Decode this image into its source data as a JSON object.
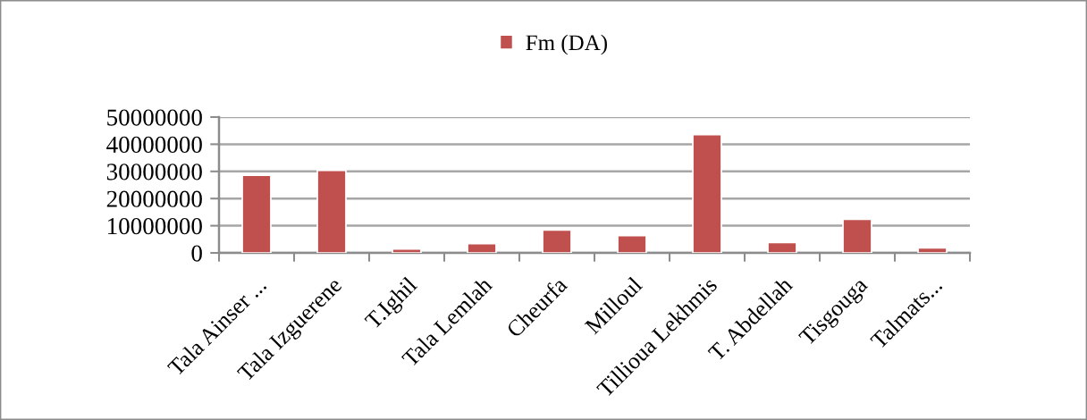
{
  "chart_data": {
    "type": "bar",
    "categories": [
      "Tala Ainser ...",
      "Tala Izguerene",
      "T.Ighil",
      "Tala Lemlah",
      "Cheurfa",
      "Milloul",
      "Tillioua Lekhmis",
      "T. Abdellah",
      "Tisgouga",
      "Talmats..."
    ],
    "series": [
      {
        "name": "Fm (DA)",
        "color": "#c0504d",
        "values": [
          28600000,
          30400000,
          1400000,
          3400000,
          8400000,
          6400000,
          43500000,
          3800000,
          12400000,
          1800000
        ]
      }
    ],
    "ylim": [
      0,
      50000000
    ],
    "yticks": [
      0,
      10000000,
      20000000,
      30000000,
      40000000,
      50000000
    ],
    "grid": "y",
    "legend": "top"
  }
}
